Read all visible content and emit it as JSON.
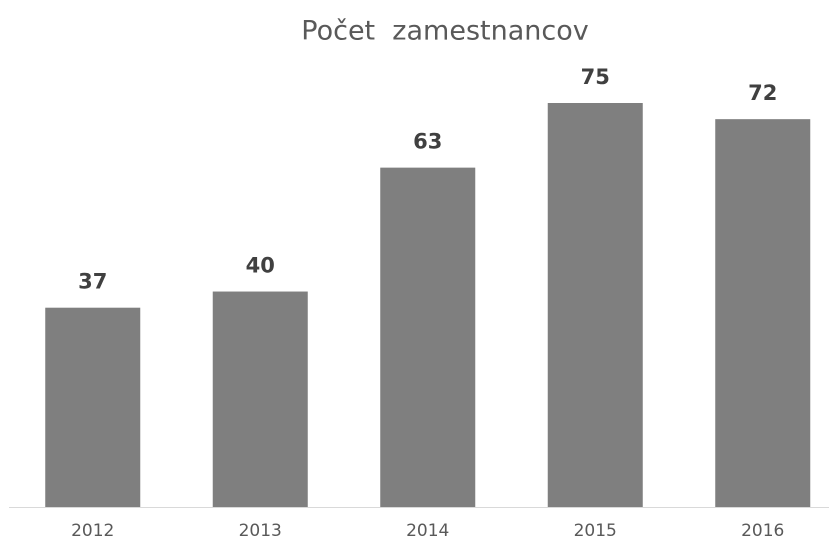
{
  "chart_data": {
    "type": "bar",
    "title": "Počet  zamestnancov",
    "categories": [
      "2012",
      "2013",
      "2014",
      "2015",
      "2016"
    ],
    "values": [
      37,
      40,
      63,
      75,
      72
    ],
    "color": "#7f7f7f"
  }
}
